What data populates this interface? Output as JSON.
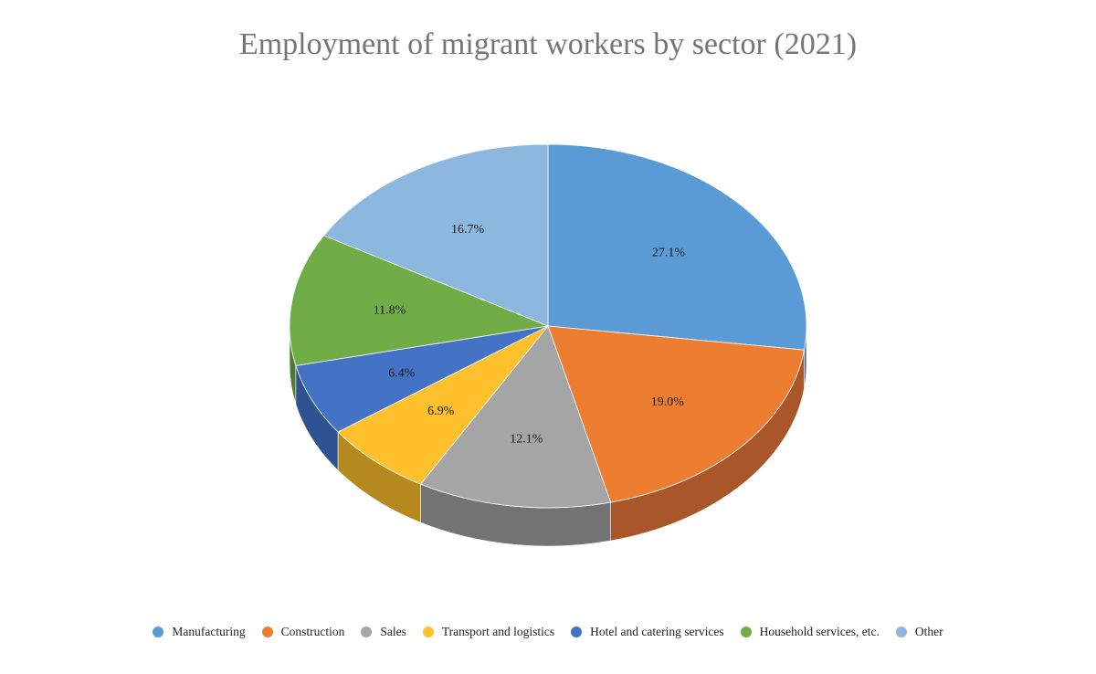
{
  "chart_data": {
    "type": "pie",
    "style": "3d",
    "title": "Employment of migrant workers by sector (2021)",
    "categories": [
      "Manufacturing",
      "Construction",
      "Sales",
      "Transport and logistics",
      "Hotel and catering services",
      "Household services, etc.",
      "Other"
    ],
    "values": [
      27.1,
      19.0,
      12.1,
      6.9,
      6.4,
      11.8,
      16.7
    ],
    "labels": [
      "27.1%",
      "19.0%",
      "12.1%",
      "6.9%",
      "6.4%",
      "11.8%",
      "16.7%"
    ],
    "unit": "%",
    "colors": [
      "#5B9BD5",
      "#ED7D31",
      "#A5A5A5",
      "#FFC02E",
      "#4472C4",
      "#70AD47",
      "#8CB8E0"
    ],
    "side_colors": [
      "#3F6E9A",
      "#A8562A",
      "#737373",
      "#B5891E",
      "#2F5391",
      "#4E7A31",
      "#6489A6"
    ],
    "legend_position": "bottom"
  }
}
